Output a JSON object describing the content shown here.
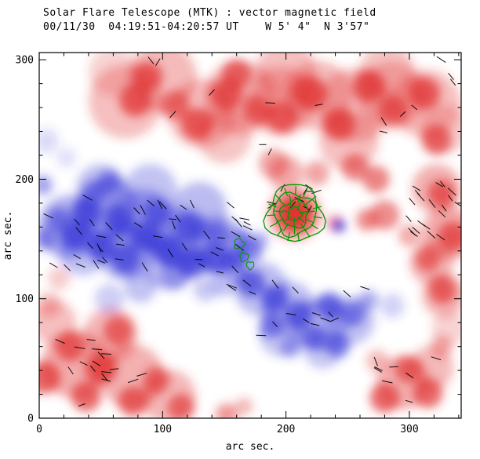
{
  "chart_data": {
    "type": "heatmap",
    "title": "Solar Flare Telescope (MTK) : vector magnetic field",
    "subtitle": "00/11/30  04:19:51-04:20:57 UT    W 5' 4\"  N 3'57\"",
    "xlabel": "arc sec.",
    "ylabel": "arc sec.",
    "xlim": [
      0,
      342
    ],
    "ylim": [
      0,
      306
    ],
    "x_ticks": [
      0,
      100,
      200,
      300
    ],
    "y_ticks": [
      0,
      100,
      200,
      300
    ],
    "minor_tick_step": 20,
    "grid": false,
    "legend": "none",
    "colors": {
      "positive": "#e03030",
      "negative": "#3838d8",
      "contour": "#009900",
      "vector": "#000000",
      "frame": "#000000",
      "background": "#ffffff"
    },
    "description": "Vector magnetogram: red = positive line-of-sight polarity, blue = negative polarity, short black ticks = transverse field vectors, green contours and green vectors mark the flare-site sunspot near (207,171) arc sec.",
    "blobs": {
      "positive": [
        [
          70,
          265,
          30,
          0.3
        ],
        [
          100,
          285,
          28,
          0.32
        ],
        [
          132,
          255,
          28,
          0.3
        ],
        [
          163,
          268,
          30,
          0.32
        ],
        [
          196,
          265,
          28,
          0.3
        ],
        [
          226,
          270,
          28,
          0.32
        ],
        [
          256,
          262,
          30,
          0.32
        ],
        [
          286,
          270,
          28,
          0.3
        ],
        [
          314,
          263,
          28,
          0.3
        ],
        [
          150,
          236,
          22,
          0.28
        ],
        [
          251,
          232,
          24,
          0.3
        ],
        [
          200,
          291,
          24,
          0.3
        ],
        [
          282,
          291,
          22,
          0.28
        ],
        [
          328,
          242,
          20,
          0.25
        ],
        [
          60,
          290,
          20,
          0.22
        ],
        [
          78,
          266,
          13,
          0.75
        ],
        [
          88,
          286,
          12,
          0.72
        ],
        [
          128,
          246,
          13,
          0.75
        ],
        [
          152,
          271,
          13,
          0.75
        ],
        [
          160,
          288,
          12,
          0.7
        ],
        [
          197,
          252,
          13,
          0.75
        ],
        [
          219,
          272,
          14,
          0.78
        ],
        [
          243,
          246,
          13,
          0.75
        ],
        [
          267,
          278,
          13,
          0.75
        ],
        [
          287,
          258,
          12,
          0.7
        ],
        [
          312,
          272,
          13,
          0.75
        ],
        [
          322,
          233,
          12,
          0.7
        ],
        [
          256,
          210,
          11,
          0.6
        ],
        [
          273,
          200,
          11,
          0.6
        ],
        [
          225,
          205,
          10,
          0.45
        ],
        [
          110,
          262,
          12,
          0.6
        ],
        [
          176,
          258,
          12,
          0.65
        ],
        [
          322,
          192,
          20,
          0.38
        ],
        [
          332,
          155,
          22,
          0.4
        ],
        [
          318,
          130,
          18,
          0.35
        ],
        [
          328,
          103,
          18,
          0.35
        ],
        [
          332,
          75,
          14,
          0.22
        ],
        [
          326,
          188,
          11,
          0.7
        ],
        [
          335,
          152,
          12,
          0.72
        ],
        [
          315,
          133,
          10,
          0.65
        ],
        [
          327,
          107,
          11,
          0.7
        ],
        [
          300,
          153,
          9,
          0.4
        ],
        [
          207,
          171,
          22,
          0.4
        ],
        [
          207,
          171,
          16,
          0.7
        ],
        [
          207,
          171,
          11,
          0.95
        ],
        [
          240,
          163,
          7,
          0.5
        ],
        [
          266,
          166,
          9,
          0.55
        ],
        [
          280,
          170,
          12,
          0.55
        ],
        [
          200,
          205,
          14,
          0.4
        ],
        [
          190,
          213,
          12,
          0.45
        ],
        [
          30,
          45,
          28,
          0.4
        ],
        [
          75,
          35,
          26,
          0.38
        ],
        [
          58,
          70,
          22,
          0.35
        ],
        [
          105,
          18,
          22,
          0.35
        ],
        [
          12,
          80,
          18,
          0.3
        ],
        [
          4,
          34,
          13,
          0.75
        ],
        [
          25,
          60,
          12,
          0.7
        ],
        [
          50,
          42,
          13,
          0.78
        ],
        [
          38,
          18,
          12,
          0.72
        ],
        [
          76,
          14,
          12,
          0.7
        ],
        [
          64,
          73,
          12,
          0.68
        ],
        [
          95,
          32,
          11,
          0.6
        ],
        [
          115,
          9,
          11,
          0.65
        ],
        [
          8,
          95,
          10,
          0.3
        ],
        [
          16,
          117,
          9,
          0.25
        ],
        [
          152,
          3,
          9,
          0.5
        ],
        [
          166,
          10,
          7,
          0.35
        ],
        [
          295,
          30,
          22,
          0.38
        ],
        [
          318,
          42,
          18,
          0.32
        ],
        [
          280,
          17,
          12,
          0.7
        ],
        [
          299,
          41,
          11,
          0.65
        ],
        [
          315,
          21,
          12,
          0.7
        ],
        [
          326,
          60,
          9,
          0.38
        ],
        [
          274,
          48,
          9,
          0.32
        ]
      ],
      "negative": [
        [
          25,
          160,
          26,
          0.38
        ],
        [
          55,
          175,
          26,
          0.38
        ],
        [
          85,
          165,
          26,
          0.38
        ],
        [
          115,
          150,
          26,
          0.38
        ],
        [
          145,
          145,
          24,
          0.36
        ],
        [
          90,
          190,
          22,
          0.3
        ],
        [
          50,
          192,
          20,
          0.32
        ],
        [
          130,
          175,
          22,
          0.35
        ],
        [
          70,
          140,
          24,
          0.36
        ],
        [
          105,
          130,
          22,
          0.34
        ],
        [
          35,
          140,
          20,
          0.3
        ],
        [
          29,
          153,
          12,
          0.78
        ],
        [
          51,
          143,
          12,
          0.78
        ],
        [
          70,
          133,
          12,
          0.78
        ],
        [
          86,
          153,
          12,
          0.78
        ],
        [
          105,
          140,
          12,
          0.78
        ],
        [
          124,
          130,
          12,
          0.75
        ],
        [
          143,
          133,
          12,
          0.75
        ],
        [
          64,
          166,
          12,
          0.75
        ],
        [
          38,
          172,
          12,
          0.72
        ],
        [
          16,
          166,
          10,
          0.6
        ],
        [
          95,
          172,
          11,
          0.65
        ],
        [
          121,
          159,
          12,
          0.72
        ],
        [
          146,
          153,
          10,
          0.6
        ],
        [
          159,
          133,
          10,
          0.7
        ],
        [
          57,
          198,
          9,
          0.55
        ],
        [
          45,
          189,
          9,
          0.5
        ],
        [
          3,
          195,
          8,
          0.45
        ],
        [
          5,
          150,
          9,
          0.5
        ],
        [
          165,
          150,
          8,
          0.55
        ],
        [
          172,
          140,
          9,
          0.6
        ],
        [
          179,
          149,
          7,
          0.4
        ],
        [
          180,
          108,
          22,
          0.32
        ],
        [
          202,
          92,
          22,
          0.32
        ],
        [
          228,
          78,
          22,
          0.32
        ],
        [
          252,
          82,
          20,
          0.3
        ],
        [
          196,
          70,
          18,
          0.28
        ],
        [
          230,
          58,
          16,
          0.28
        ],
        [
          172,
          113,
          11,
          0.7
        ],
        [
          191,
          100,
          11,
          0.7
        ],
        [
          210,
          87,
          11,
          0.7
        ],
        [
          235,
          94,
          11,
          0.7
        ],
        [
          254,
          87,
          10,
          0.6
        ],
        [
          223,
          68,
          10,
          0.6
        ],
        [
          242,
          61,
          10,
          0.6
        ],
        [
          188,
          77,
          10,
          0.55
        ],
        [
          204,
          60,
          9,
          0.4
        ],
        [
          267,
          99,
          8,
          0.4
        ],
        [
          243,
          161,
          5,
          0.85
        ],
        [
          286,
          94,
          10,
          0.22
        ],
        [
          6,
          232,
          10,
          0.18
        ],
        [
          22,
          218,
          8,
          0.16
        ],
        [
          150,
          112,
          10,
          0.3
        ],
        [
          160,
          121,
          9,
          0.35
        ],
        [
          57,
          100,
          12,
          0.25
        ],
        [
          82,
          110,
          13,
          0.3
        ],
        [
          110,
          120,
          12,
          0.32
        ],
        [
          135,
          108,
          10,
          0.28
        ]
      ]
    },
    "vector_clusters": [
      [
        6,
        125,
        150,
        60,
        42,
        -35,
        35
      ],
      [
        10,
        40,
        45,
        28,
        9,
        -25,
        30
      ],
      [
        178,
        65,
        90,
        50,
        13,
        -15,
        45
      ],
      [
        185,
        172,
        60,
        22,
        11,
        15,
        50
      ],
      [
        150,
        130,
        30,
        38,
        8,
        -40,
        30
      ],
      [
        298,
        150,
        42,
        50,
        20,
        -42,
        14
      ],
      [
        55,
        205,
        260,
        95,
        12,
        0,
        90
      ],
      [
        272,
        12,
        55,
        50,
        8,
        -30,
        40
      ],
      [
        25,
        8,
        60,
        35,
        8,
        -20,
        40
      ],
      [
        318,
        280,
        24,
        24,
        3,
        -30,
        30
      ],
      [
        128,
        100,
        45,
        28,
        6,
        -30,
        35
      ]
    ],
    "contours": {
      "cx": 207,
      "cy": 171,
      "radii": [
        23,
        17,
        11,
        5.5
      ],
      "minor": [
        [
          162,
          146,
          4
        ],
        [
          166,
          135,
          3.5
        ],
        [
          171,
          128,
          3
        ]
      ]
    },
    "green_vectors": {
      "cx": 207,
      "cy": 171,
      "rings": [
        [
          7,
          7
        ],
        [
          13,
          11
        ],
        [
          19,
          15
        ]
      ],
      "len": 7
    }
  }
}
